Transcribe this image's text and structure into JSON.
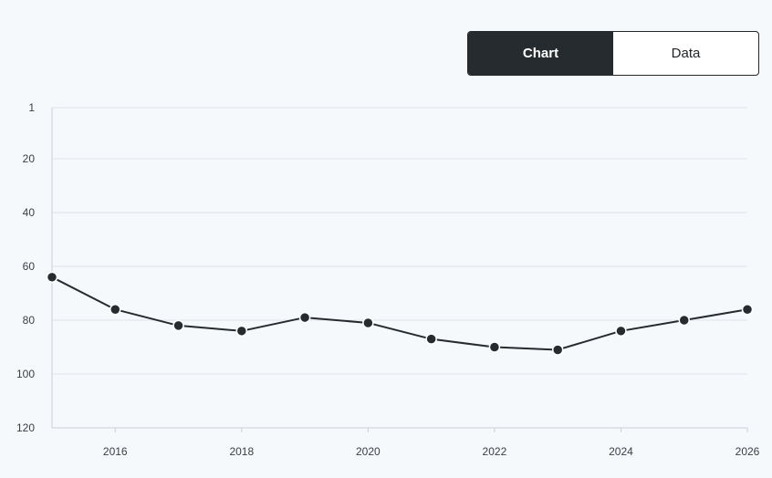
{
  "view_toggle": {
    "chart_label": "Chart",
    "data_label": "Data",
    "active": "chart"
  },
  "colors": {
    "line": "#262b2f",
    "grid": "#dde3ea",
    "axis": "#c9d0d8",
    "background": "#f6f9fc"
  },
  "chart_data": {
    "type": "line",
    "y_inverted": true,
    "xlim": [
      2015,
      2026
    ],
    "ylim": [
      1,
      120
    ],
    "x_ticks": [
      2016,
      2018,
      2020,
      2022,
      2024,
      2026
    ],
    "x_tick_labels": [
      "2016",
      "2018",
      "2020",
      "2022",
      "2024",
      "2026"
    ],
    "y_ticks": [
      1,
      20,
      40,
      60,
      80,
      100,
      120
    ],
    "y_tick_labels": [
      "1",
      "20",
      "40",
      "60",
      "80",
      "100",
      "120"
    ],
    "grid": true,
    "series": [
      {
        "x": [
          2015,
          2016,
          2017,
          2018,
          2019,
          2020,
          2021,
          2022,
          2023,
          2024,
          2025,
          2026
        ],
        "values": [
          64,
          76,
          82,
          84,
          79,
          81,
          87,
          90,
          91,
          84,
          80,
          76
        ]
      }
    ]
  }
}
